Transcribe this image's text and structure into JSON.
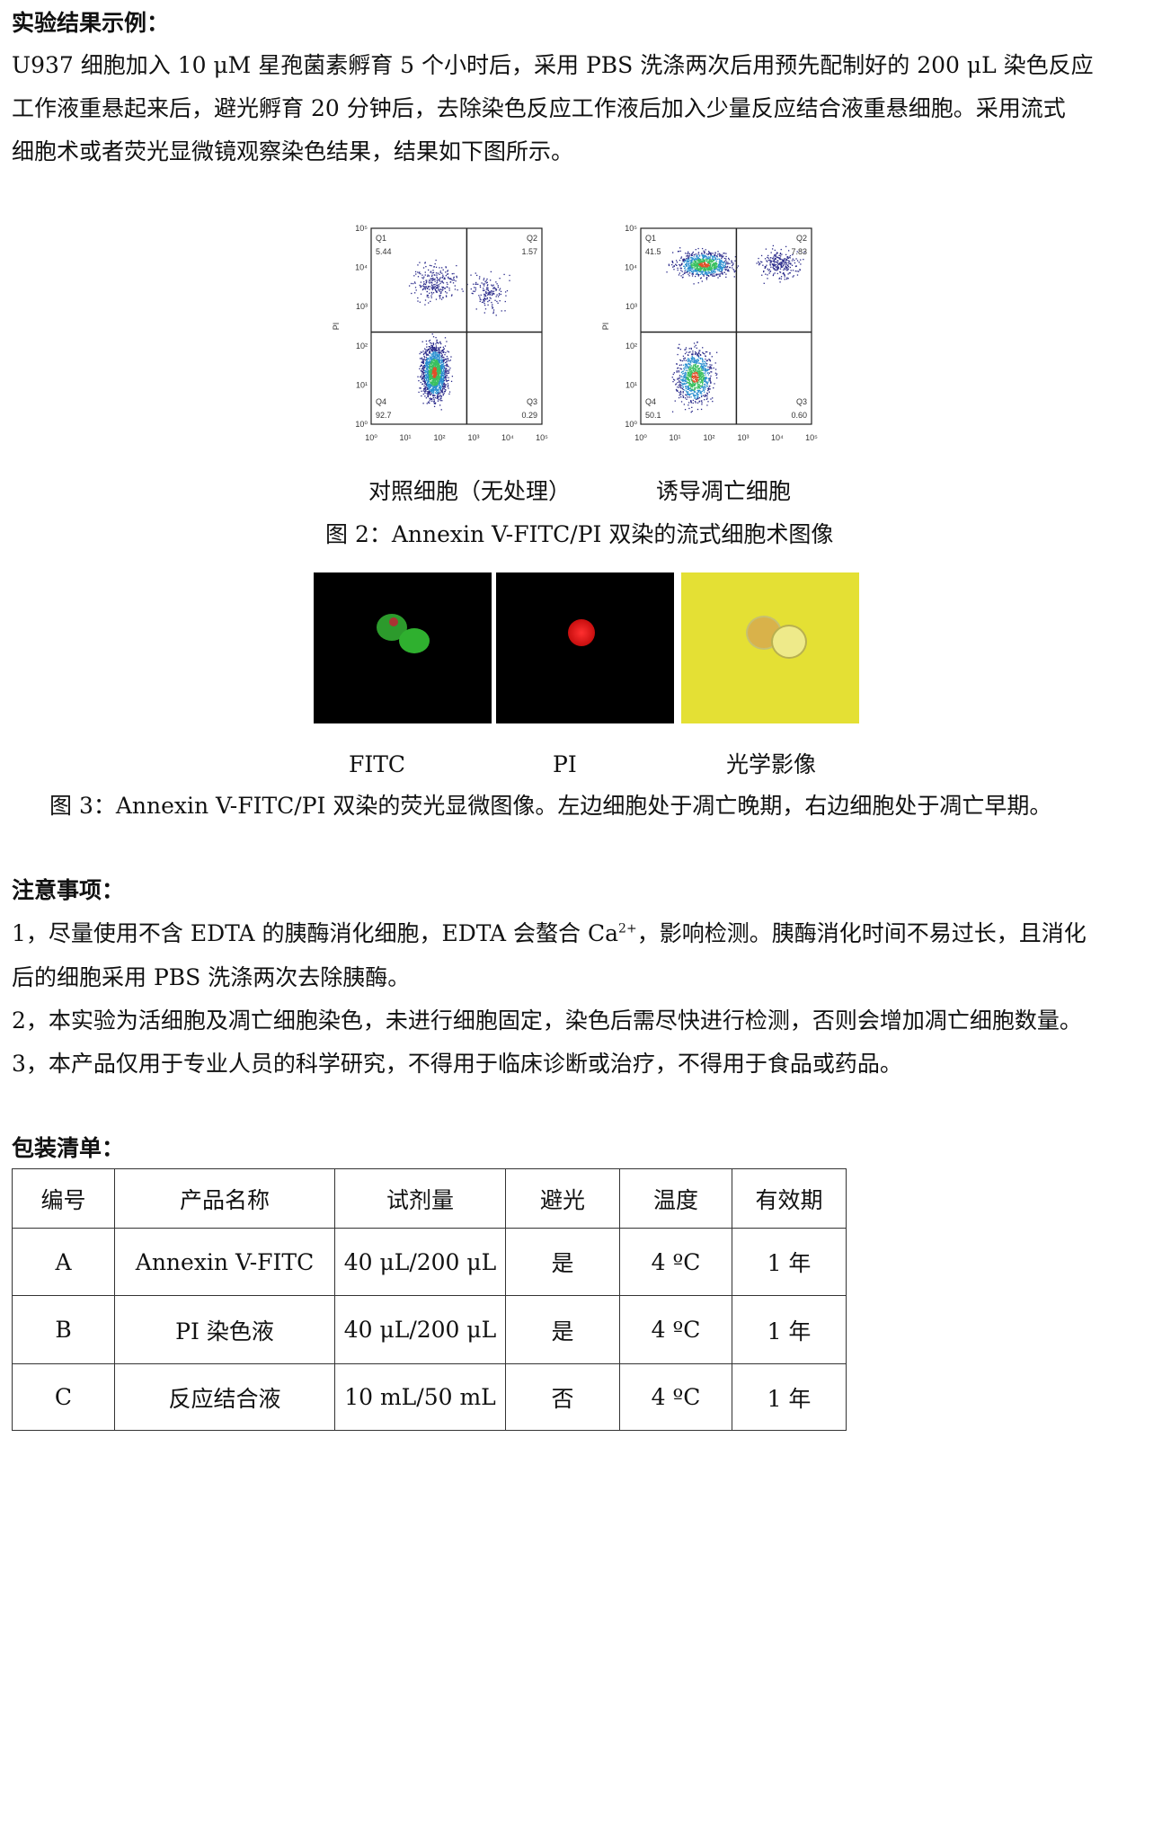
{
  "section1": {
    "title": "实验结果示例：",
    "para": [
      "U937 细胞加入 10 μM 星孢菌素孵育 5 个小时后，采用 PBS 洗涤两次后用预先配制好的 200 μL 染色反应",
      "工作液重悬起来后，避光孵育 20 分钟后，去除染色反应工作液后加入少量反应结合液重悬细胞。采用流式",
      "细胞术或者荧光显微镜观察染色结果，结果如下图所示。"
    ]
  },
  "flow": {
    "xlabel": "FITC",
    "ylabel": "PI",
    "ticks": [
      "10⁰",
      "10¹",
      "10²",
      "10³",
      "10⁴",
      "10⁵"
    ],
    "plots": [
      {
        "caption": "对照细胞（无处理）",
        "q": [
          {
            "name": "Q1",
            "value": "5.44"
          },
          {
            "name": "Q2",
            "value": "1.57"
          },
          {
            "name": "Q3",
            "value": "0.29"
          },
          {
            "name": "Q4",
            "value": "92.7"
          }
        ]
      },
      {
        "caption": "诱导凋亡细胞",
        "q": [
          {
            "name": "Q1",
            "value": "41.5"
          },
          {
            "name": "Q2",
            "value": "7.83"
          },
          {
            "name": "Q3",
            "value": "0.60"
          },
          {
            "name": "Q4",
            "value": "50.1"
          }
        ]
      }
    ],
    "figure_caption": "图 2：Annexin V-FITC/PI 双染的流式细胞术图像"
  },
  "micro": {
    "labels": [
      "FITC",
      "PI",
      "光学影像"
    ],
    "figure_caption": "图 3：Annexin V-FITC/PI 双染的荧光显微图像。左边细胞处于凋亡晚期，右边细胞处于凋亡早期。"
  },
  "notes": {
    "title": "注意事项：",
    "items": [
      "1，尽量使用不含 EDTA 的胰酶消化细胞，EDTA 会螯合 Ca",
      "2+",
      "，影响检测。胰酶消化时间不易过长，且消化",
      "后的细胞采用 PBS 洗涤两次去除胰酶。",
      "2，本实验为活细胞及凋亡细胞染色，未进行细胞固定，染色后需尽快进行检测，否则会增加凋亡细胞数量。",
      "3，本产品仅用于专业人员的科学研究，不得用于临床诊断或治疗，不得用于食品或药品。"
    ]
  },
  "packing": {
    "title": "包装清单：",
    "headers": [
      "编号",
      "产品名称",
      "试剂量",
      "避光",
      "温度",
      "有效期"
    ],
    "rows": [
      [
        "A",
        "Annexin V-FITC",
        "40 μL/200 μL",
        "是",
        "4 ºC",
        "1 年"
      ],
      [
        "B",
        "PI 染色液",
        "40 μL/200 μL",
        "是",
        "4 ºC",
        "1 年"
      ],
      [
        "C",
        "反应结合液",
        "10 mL/50 mL",
        "否",
        "4 ºC",
        "1 年"
      ]
    ]
  }
}
